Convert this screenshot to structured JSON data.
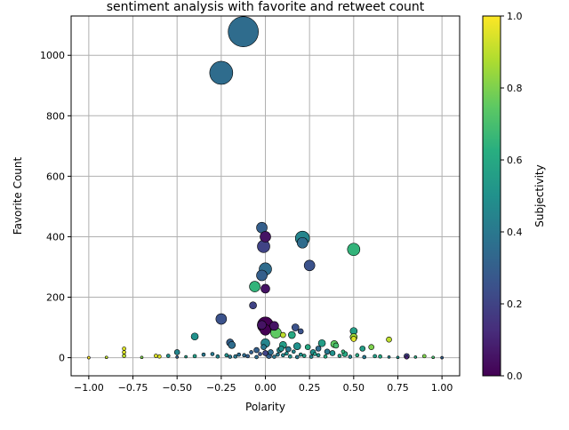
{
  "chart_data": {
    "type": "scatter",
    "title": "sentiment analysis with favorite and retweet count",
    "xlabel": "Polarity",
    "ylabel": "Favorite Count",
    "xlim": [
      -1.1,
      1.1
    ],
    "ylim": [
      -60,
      1130
    ],
    "xticks": [
      -1.0,
      -0.75,
      -0.5,
      -0.25,
      0.0,
      0.25,
      0.5,
      0.75,
      1.0
    ],
    "xtick_labels": [
      "−1.00",
      "−0.75",
      "−0.50",
      "−0.25",
      "0.00",
      "0.25",
      "0.50",
      "0.75",
      "1.00"
    ],
    "yticks": [
      0,
      200,
      400,
      600,
      800,
      1000
    ],
    "ytick_labels": [
      "0",
      "200",
      "400",
      "600",
      "800",
      "1000"
    ],
    "grid": true,
    "colorbar": {
      "label": "Subjectivity",
      "colormap": "viridis",
      "range": [
        0,
        1
      ],
      "ticks": [
        0.0,
        0.2,
        0.4,
        0.6,
        0.8,
        1.0
      ],
      "tick_labels": [
        "0.0",
        "0.2",
        "0.4",
        "0.6",
        "0.8",
        "1.0"
      ]
    },
    "size_encoding": "retweet count",
    "points": [
      {
        "x": -0.125,
        "y": 1078,
        "c": 0.35,
        "r": 17
      },
      {
        "x": -0.25,
        "y": 942,
        "c": 0.35,
        "r": 13
      },
      {
        "x": -0.02,
        "y": 430,
        "c": 0.3,
        "r": 6
      },
      {
        "x": 0.0,
        "y": 400,
        "c": 0.05,
        "r": 6
      },
      {
        "x": -0.01,
        "y": 368,
        "c": 0.2,
        "r": 7
      },
      {
        "x": 0.21,
        "y": 395,
        "c": 0.45,
        "r": 8
      },
      {
        "x": 0.21,
        "y": 380,
        "c": 0.35,
        "r": 6
      },
      {
        "x": 0.5,
        "y": 358,
        "c": 0.65,
        "r": 7
      },
      {
        "x": 0.25,
        "y": 305,
        "c": 0.25,
        "r": 6
      },
      {
        "x": 0.0,
        "y": 293,
        "c": 0.35,
        "r": 7
      },
      {
        "x": -0.02,
        "y": 272,
        "c": 0.3,
        "r": 6
      },
      {
        "x": -0.06,
        "y": 235,
        "c": 0.65,
        "r": 6
      },
      {
        "x": 0.0,
        "y": 228,
        "c": 0.05,
        "r": 5
      },
      {
        "x": -0.07,
        "y": 173,
        "c": 0.2,
        "r": 4
      },
      {
        "x": -0.25,
        "y": 128,
        "c": 0.25,
        "r": 6
      },
      {
        "x": 0.0,
        "y": 108,
        "c": 0.0,
        "r": 9
      },
      {
        "x": -0.02,
        "y": 108,
        "c": 0.05,
        "r": 5
      },
      {
        "x": 0.05,
        "y": 105,
        "c": 0.05,
        "r": 5
      },
      {
        "x": 0.17,
        "y": 100,
        "c": 0.25,
        "r": 4
      },
      {
        "x": 0.0,
        "y": 92,
        "c": 0.0,
        "r": 6
      },
      {
        "x": 0.5,
        "y": 88,
        "c": 0.55,
        "r": 4
      },
      {
        "x": 0.06,
        "y": 82,
        "c": 0.75,
        "r": 6
      },
      {
        "x": 0.2,
        "y": 87,
        "c": 0.25,
        "r": 3
      },
      {
        "x": 0.15,
        "y": 75,
        "c": 0.6,
        "r": 4
      },
      {
        "x": 0.1,
        "y": 75,
        "c": 0.9,
        "r": 3
      },
      {
        "x": -0.4,
        "y": 70,
        "c": 0.5,
        "r": 4
      },
      {
        "x": 0.5,
        "y": 68,
        "c": 0.85,
        "r": 4
      },
      {
        "x": 0.5,
        "y": 62,
        "c": 0.95,
        "r": 3
      },
      {
        "x": 0.7,
        "y": 60,
        "c": 0.9,
        "r": 3
      },
      {
        "x": -0.2,
        "y": 50,
        "c": 0.3,
        "r": 4
      },
      {
        "x": -0.19,
        "y": 42,
        "c": 0.35,
        "r": 4
      },
      {
        "x": 0.0,
        "y": 48,
        "c": 0.45,
        "r": 5
      },
      {
        "x": 0.32,
        "y": 48,
        "c": 0.55,
        "r": 4
      },
      {
        "x": 0.39,
        "y": 45,
        "c": 0.75,
        "r": 4
      },
      {
        "x": 0.4,
        "y": 40,
        "c": 0.7,
        "r": 3
      },
      {
        "x": 0.1,
        "y": 42,
        "c": 0.55,
        "r": 4
      },
      {
        "x": 0.18,
        "y": 38,
        "c": 0.5,
        "r": 4
      },
      {
        "x": 0.24,
        "y": 35,
        "c": 0.6,
        "r": 3
      },
      {
        "x": 0.6,
        "y": 35,
        "c": 0.8,
        "r": 3
      },
      {
        "x": -0.8,
        "y": 30,
        "c": 0.95,
        "r": 2
      },
      {
        "x": 0.55,
        "y": 30,
        "c": 0.55,
        "r": 3
      },
      {
        "x": 0.3,
        "y": 30,
        "c": 0.35,
        "r": 3
      },
      {
        "x": 0.13,
        "y": 28,
        "c": 0.4,
        "r": 3
      },
      {
        "x": -0.05,
        "y": 25,
        "c": 0.3,
        "r": 3
      },
      {
        "x": 0.08,
        "y": 25,
        "c": 0.45,
        "r": 3
      },
      {
        "x": -0.8,
        "y": 18,
        "c": 0.95,
        "r": 2
      },
      {
        "x": -0.5,
        "y": 18,
        "c": 0.45,
        "r": 3
      },
      {
        "x": -0.3,
        "y": 12,
        "c": 0.4,
        "r": 2
      },
      {
        "x": -0.15,
        "y": 10,
        "c": 0.35,
        "r": 2
      },
      {
        "x": 0.45,
        "y": 12,
        "c": 0.6,
        "r": 3
      },
      {
        "x": 0.38,
        "y": 15,
        "c": 0.5,
        "r": 3
      },
      {
        "x": 0.27,
        "y": 18,
        "c": 0.5,
        "r": 3
      },
      {
        "x": 0.35,
        "y": 20,
        "c": 0.4,
        "r": 3
      },
      {
        "x": -0.35,
        "y": 10,
        "c": 0.4,
        "r": 2
      },
      {
        "x": -0.4,
        "y": 5,
        "c": 0.55,
        "r": 2
      },
      {
        "x": -0.55,
        "y": 6,
        "c": 0.5,
        "r": 2
      },
      {
        "x": -0.62,
        "y": 6,
        "c": 0.95,
        "r": 2
      },
      {
        "x": -0.6,
        "y": 4,
        "c": 0.95,
        "r": 2
      },
      {
        "x": -0.8,
        "y": 6,
        "c": 0.9,
        "r": 2
      },
      {
        "x": 0.8,
        "y": 5,
        "c": 0.2,
        "r": 3
      },
      {
        "x": 0.8,
        "y": 1,
        "c": 0.1,
        "r": 2
      },
      {
        "x": 0.9,
        "y": 5,
        "c": 0.8,
        "r": 2
      },
      {
        "x": 0.65,
        "y": 4,
        "c": 0.6,
        "r": 2
      },
      {
        "x": 0.7,
        "y": 2,
        "c": 0.45,
        "r": 1.5
      },
      {
        "x": 1.0,
        "y": 0,
        "c": 0.3,
        "r": 1.5
      },
      {
        "x": -1.0,
        "y": 0,
        "c": 1.0,
        "r": 1.5
      },
      {
        "x": -0.5,
        "y": 2,
        "c": 0.3,
        "r": 1.5
      },
      {
        "x": -0.2,
        "y": 3,
        "c": 0.4,
        "r": 2
      },
      {
        "x": -0.1,
        "y": 5,
        "c": 0.3,
        "r": 2
      },
      {
        "x": -0.05,
        "y": 2,
        "c": 0.35,
        "r": 2
      },
      {
        "x": 0.02,
        "y": 6,
        "c": 0.3,
        "r": 3
      },
      {
        "x": 0.05,
        "y": 3,
        "c": 0.4,
        "r": 2
      },
      {
        "x": 0.1,
        "y": 8,
        "c": 0.45,
        "r": 2
      },
      {
        "x": 0.14,
        "y": 4,
        "c": 0.5,
        "r": 2
      },
      {
        "x": 0.18,
        "y": 2,
        "c": 0.4,
        "r": 2
      },
      {
        "x": 0.22,
        "y": 6,
        "c": 0.55,
        "r": 2
      },
      {
        "x": 0.26,
        "y": 3,
        "c": 0.45,
        "r": 2
      },
      {
        "x": 0.3,
        "y": 8,
        "c": 0.5,
        "r": 2
      },
      {
        "x": 0.34,
        "y": 4,
        "c": 0.6,
        "r": 2
      },
      {
        "x": 0.42,
        "y": 6,
        "c": 0.55,
        "r": 2
      },
      {
        "x": 0.48,
        "y": 3,
        "c": 0.45,
        "r": 2
      },
      {
        "x": 0.52,
        "y": 8,
        "c": 0.6,
        "r": 2
      },
      {
        "x": 0.56,
        "y": 2,
        "c": 0.4,
        "r": 2
      },
      {
        "x": 0.62,
        "y": 5,
        "c": 0.55,
        "r": 2
      },
      {
        "x": 0.0,
        "y": 15,
        "c": 0.2,
        "r": 3
      },
      {
        "x": -0.03,
        "y": 12,
        "c": 0.25,
        "r": 2
      },
      {
        "x": 0.03,
        "y": 18,
        "c": 0.35,
        "r": 3
      },
      {
        "x": 0.07,
        "y": 10,
        "c": 0.4,
        "r": 2
      },
      {
        "x": 0.12,
        "y": 14,
        "c": 0.5,
        "r": 2
      },
      {
        "x": 0.16,
        "y": 20,
        "c": 0.45,
        "r": 2
      },
      {
        "x": 0.2,
        "y": 10,
        "c": 0.5,
        "r": 2
      },
      {
        "x": -0.08,
        "y": 18,
        "c": 0.3,
        "r": 2
      },
      {
        "x": -0.12,
        "y": 8,
        "c": 0.35,
        "r": 2
      },
      {
        "x": -0.17,
        "y": 4,
        "c": 0.4,
        "r": 2
      },
      {
        "x": -0.22,
        "y": 8,
        "c": 0.5,
        "r": 2
      },
      {
        "x": -0.27,
        "y": 4,
        "c": 0.45,
        "r": 2
      },
      {
        "x": -0.45,
        "y": 3,
        "c": 0.55,
        "r": 1.5
      },
      {
        "x": 0.75,
        "y": 1,
        "c": 0.5,
        "r": 1.5
      },
      {
        "x": 0.85,
        "y": 2,
        "c": 0.6,
        "r": 1.5
      },
      {
        "x": 0.95,
        "y": 1,
        "c": 0.7,
        "r": 1.5
      },
      {
        "x": -0.7,
        "y": 1,
        "c": 0.8,
        "r": 1.5
      },
      {
        "x": -0.9,
        "y": 1,
        "c": 0.9,
        "r": 1.5
      },
      {
        "x": 0.44,
        "y": 20,
        "c": 0.65,
        "r": 2
      },
      {
        "x": 0.28,
        "y": 12,
        "c": 0.55,
        "r": 2
      },
      {
        "x": 0.09,
        "y": 30,
        "c": 0.5,
        "r": 3
      },
      {
        "x": -0.01,
        "y": 35,
        "c": 0.4,
        "r": 3
      }
    ]
  }
}
